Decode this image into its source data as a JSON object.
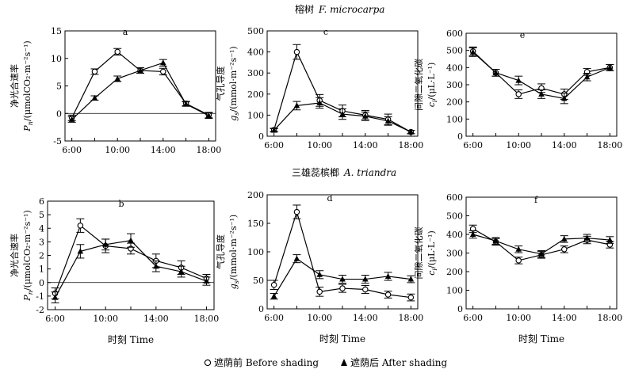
{
  "sections": [
    {
      "cn": "榕树",
      "latin": "F. microcarpa"
    },
    {
      "cn": "三雄蕊槟榔",
      "latin": "A. triandra"
    }
  ],
  "legend": {
    "before": "遮荫前  Before shading",
    "after": "遮荫后  After shading"
  },
  "chart_data": [
    {
      "id": "a",
      "type": "line",
      "panel_label": "a",
      "ylabel_cn": "净光合速率",
      "ylabel_sym": "P",
      "ylabel_sub": "n",
      "ylabel_unit": "/(μmolCO₂·m⁻²s⁻¹)",
      "xlabel": "",
      "ylim": [
        -5,
        15
      ],
      "yticks": [
        -5,
        0,
        5,
        10,
        15
      ],
      "xticks": [
        "6:00",
        "10:00",
        "14:00",
        "18:00"
      ],
      "x": [
        6,
        8,
        10,
        12,
        14,
        16,
        18
      ],
      "series": [
        {
          "name": "Before shading",
          "marker": "circle",
          "values": [
            -0.8,
            7.6,
            11.2,
            7.8,
            7.6,
            1.8,
            -0.3
          ],
          "errors": [
            0.5,
            0.5,
            0.6,
            0.5,
            0.6,
            0.4,
            0.5
          ]
        },
        {
          "name": "After shading",
          "marker": "triangle",
          "values": [
            -1.1,
            2.8,
            6.3,
            7.8,
            9.2,
            1.7,
            -0.4
          ],
          "errors": [
            0.5,
            0.4,
            0.5,
            0.5,
            0.6,
            0.4,
            0.5
          ]
        }
      ]
    },
    {
      "id": "c",
      "type": "line",
      "panel_label": "c",
      "ylabel_cn": "气孔导度",
      "ylabel_sym": "g",
      "ylabel_sub": "s",
      "ylabel_unit": "/(mmol·m⁻²s⁻¹)",
      "xlabel": "",
      "ylim": [
        0,
        500
      ],
      "yticks": [
        0,
        100,
        200,
        300,
        400,
        500
      ],
      "xticks": [
        "6:00",
        "10:00",
        "14:00",
        "18:00"
      ],
      "x": [
        6,
        8,
        10,
        12,
        14,
        16,
        18
      ],
      "series": [
        {
          "name": "Before shading",
          "marker": "circle",
          "values": [
            30,
            400,
            170,
            120,
            100,
            80,
            20
          ],
          "errors": [
            8,
            35,
            28,
            28,
            22,
            25,
            8
          ]
        },
        {
          "name": "After shading",
          "marker": "triangle",
          "values": [
            28,
            145,
            158,
            105,
            95,
            72,
            20
          ],
          "errors": [
            8,
            20,
            25,
            25,
            20,
            20,
            8
          ]
        }
      ]
    },
    {
      "id": "e",
      "type": "line",
      "panel_label": "e",
      "ylabel_cn": "间隙二氧化碳",
      "ylabel_sym": "c",
      "ylabel_sub": "i",
      "ylabel_unit": "/(μL·L⁻¹)",
      "xlabel": "",
      "ylim": [
        0,
        600
      ],
      "yticks": [
        0,
        100,
        200,
        300,
        400,
        500,
        600
      ],
      "xticks": [
        "6:00",
        "10:00",
        "14:00",
        "18:00"
      ],
      "x": [
        6,
        8,
        10,
        12,
        14,
        16,
        18
      ],
      "series": [
        {
          "name": "Before shading",
          "marker": "circle",
          "values": [
            495,
            370,
            245,
            280,
            245,
            375,
            400
          ],
          "errors": [
            25,
            20,
            25,
            25,
            30,
            20,
            18
          ]
        },
        {
          "name": "After shading",
          "marker": "triangle",
          "values": [
            490,
            370,
            325,
            245,
            220,
            345,
            400
          ],
          "errors": [
            25,
            20,
            25,
            25,
            30,
            22,
            18
          ]
        }
      ]
    },
    {
      "id": "b",
      "type": "line",
      "panel_label": "b",
      "ylabel_cn": "净光合速率",
      "ylabel_sym": "P",
      "ylabel_sub": "n",
      "ylabel_unit": "/(μmolCO₂·m⁻²s⁻¹)",
      "xlabel": "时刻  Time",
      "ylim": [
        -2,
        6
      ],
      "yticks": [
        -2,
        -1,
        0,
        1,
        2,
        3,
        4,
        5,
        6
      ],
      "xticks": [
        "6:00",
        "10:00",
        "14:00",
        "18:00"
      ],
      "x": [
        6,
        8,
        10,
        12,
        14,
        16,
        18
      ],
      "series": [
        {
          "name": "Before shading",
          "marker": "circle",
          "values": [
            -0.8,
            4.2,
            2.7,
            2.5,
            1.6,
            1.1,
            0.3
          ],
          "errors": [
            0.4,
            0.5,
            0.5,
            0.4,
            0.5,
            0.5,
            0.3
          ]
        },
        {
          "name": "After shading",
          "marker": "triangle",
          "values": [
            -1.1,
            2.3,
            2.8,
            3.1,
            1.2,
            0.8,
            0.1
          ],
          "errors": [
            0.4,
            0.5,
            0.4,
            0.5,
            0.4,
            0.4,
            0.3
          ]
        }
      ]
    },
    {
      "id": "d",
      "type": "line",
      "panel_label": "d",
      "ylabel_cn": "气孔导度",
      "ylabel_sym": "g",
      "ylabel_sub": "s",
      "ylabel_unit": "/(mmol·m⁻²s⁻¹)",
      "xlabel": "时刻  Time",
      "ylim": [
        0,
        200
      ],
      "yticks": [
        0,
        50,
        100,
        150,
        200
      ],
      "xticks": [
        "6:00",
        "10:00",
        "14:00",
        "18:00"
      ],
      "x": [
        6,
        8,
        10,
        12,
        14,
        16,
        18
      ],
      "series": [
        {
          "name": "Before shading",
          "marker": "circle",
          "values": [
            42,
            170,
            30,
            36,
            34,
            25,
            20
          ],
          "errors": [
            8,
            12,
            8,
            7,
            7,
            6,
            6
          ]
        },
        {
          "name": "After shading",
          "marker": "triangle",
          "values": [
            22,
            88,
            60,
            52,
            52,
            57,
            52
          ],
          "errors": [
            5,
            7,
            7,
            7,
            7,
            7,
            6
          ]
        }
      ]
    },
    {
      "id": "f",
      "type": "line",
      "panel_label": "f",
      "ylabel_cn": "间隙二氧化碳",
      "ylabel_sym": "c",
      "ylabel_sub": "i",
      "ylabel_unit": "/(μL·L⁻¹)",
      "xlabel": "时刻  Time",
      "ylim": [
        0,
        600
      ],
      "yticks": [
        0,
        100,
        200,
        300,
        400,
        500,
        600
      ],
      "xticks": [
        "6:00",
        "10:00",
        "14:00",
        "18:00"
      ],
      "x": [
        6,
        8,
        10,
        12,
        14,
        16,
        18
      ],
      "series": [
        {
          "name": "Before shading",
          "marker": "circle",
          "values": [
            430,
            360,
            260,
            290,
            320,
            370,
            345
          ],
          "errors": [
            20,
            18,
            18,
            18,
            18,
            20,
            18
          ]
        },
        {
          "name": "After shading",
          "marker": "triangle",
          "values": [
            400,
            365,
            320,
            295,
            375,
            380,
            370
          ],
          "errors": [
            20,
            18,
            18,
            18,
            18,
            20,
            18
          ]
        }
      ]
    }
  ]
}
